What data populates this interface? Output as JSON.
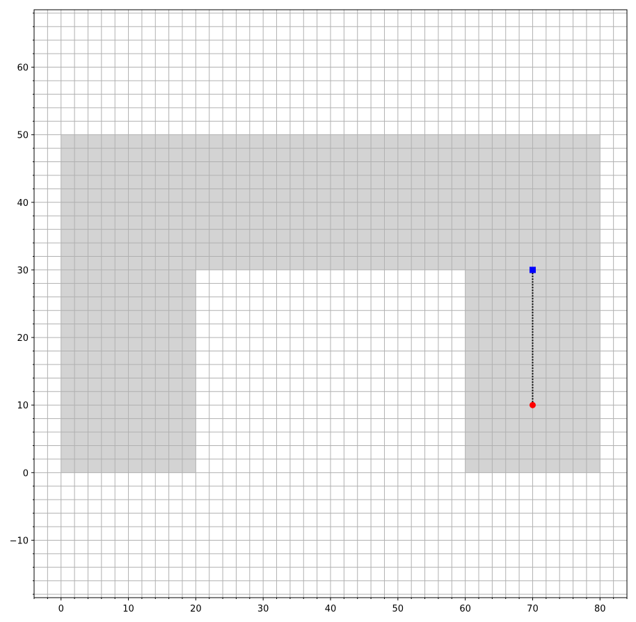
{
  "chart_data": {
    "type": "scatter",
    "title": "",
    "xlabel": "",
    "ylabel": "",
    "xlim": [
      -4,
      84
    ],
    "ylim": [
      -18.5,
      68.5
    ],
    "grid": true,
    "minor_grid_step": 2,
    "major_tick_step": 10,
    "x_ticks": [
      0,
      10,
      20,
      30,
      40,
      50,
      60,
      70,
      80
    ],
    "x_tick_labels": [
      "0",
      "10",
      "20",
      "30",
      "40",
      "50",
      "60",
      "70",
      "80"
    ],
    "y_ticks": [
      -10,
      0,
      10,
      20,
      30,
      40,
      50,
      60
    ],
    "y_tick_labels": [
      "−10",
      "0",
      "10",
      "20",
      "30",
      "40",
      "50",
      "60"
    ],
    "regions": [
      {
        "shape": "polygon",
        "fill": "#d3d3d3",
        "points": [
          [
            0,
            0
          ],
          [
            20,
            0
          ],
          [
            20,
            30
          ],
          [
            60,
            30
          ],
          [
            60,
            0
          ],
          [
            80,
            0
          ],
          [
            80,
            50
          ],
          [
            0,
            50
          ]
        ]
      }
    ],
    "path": {
      "style": "dotted",
      "color": "#000000",
      "points": [
        [
          70,
          10
        ],
        [
          70,
          30
        ]
      ]
    },
    "markers": [
      {
        "x": 70,
        "y": 10,
        "shape": "circle",
        "color": "#ff0000"
      },
      {
        "x": 70,
        "y": 30,
        "shape": "square",
        "color": "#0000ff"
      }
    ]
  }
}
